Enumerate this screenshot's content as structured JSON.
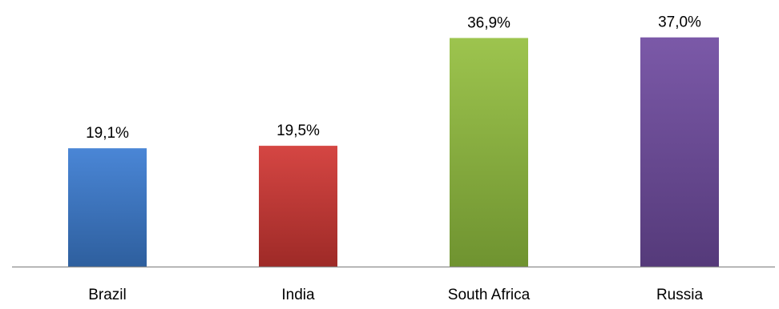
{
  "chart_data": {
    "type": "bar",
    "title": "",
    "xlabel": "",
    "ylabel": "",
    "categories": [
      "Brazil",
      "India",
      "South Africa",
      "Russia"
    ],
    "values": [
      19.1,
      19.5,
      36.9,
      37.0
    ],
    "value_labels": [
      "19,1%",
      "19,5%",
      "36,9%",
      "37,0%"
    ],
    "ylim": [
      0,
      42
    ],
    "grid": false,
    "legend": "none",
    "colors": [
      "#3C78C8",
      "#C63A36",
      "#8DB33F",
      "#6A4A95"
    ],
    "colors_light": [
      "#4A86D6",
      "#D54643",
      "#9DC44E",
      "#7B59A8"
    ],
    "colors_dark": [
      "#2E5F9E",
      "#9E2A27",
      "#6F9330",
      "#553A7A"
    ]
  }
}
